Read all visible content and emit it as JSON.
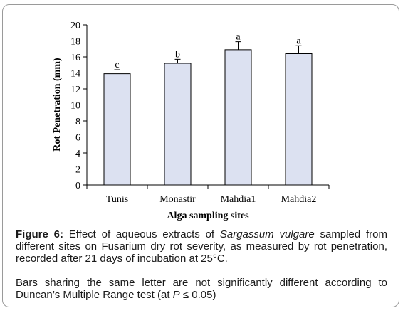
{
  "chart_data": {
    "type": "bar",
    "categories": [
      "Tunis",
      "Monastir",
      "Mahdia1",
      "Mahdia2"
    ],
    "values": [
      13.9,
      15.2,
      16.9,
      16.4
    ],
    "error": [
      0.5,
      0.5,
      1.0,
      1.0
    ],
    "letters": [
      "c",
      "b",
      "a",
      "a"
    ],
    "xlabel": "Alga sampling sites",
    "ylabel": "Rot Penetration (mm)",
    "ylim": [
      0,
      20
    ],
    "yticks": [
      0,
      2,
      4,
      6,
      8,
      10,
      12,
      14,
      16,
      18,
      20
    ],
    "grid": false,
    "bar_color": "#dce1f1",
    "bar_edge": "#000000"
  },
  "caption": {
    "figure_label": "Figure 6:",
    "part1": " Effect of aqueous extracts of ",
    "species": "Sargassum vulgare",
    "part2": " sampled from different sites on Fusarium dry rot severity, as measured by rot penetration, recorded after 21 days of incubation at 25°C.",
    "note_part1": "Bars sharing the same letter are not significantly different according to Duncan’s Multiple Range test (at ",
    "note_p": "P",
    "note_part2": " ≤ 0.05)"
  }
}
